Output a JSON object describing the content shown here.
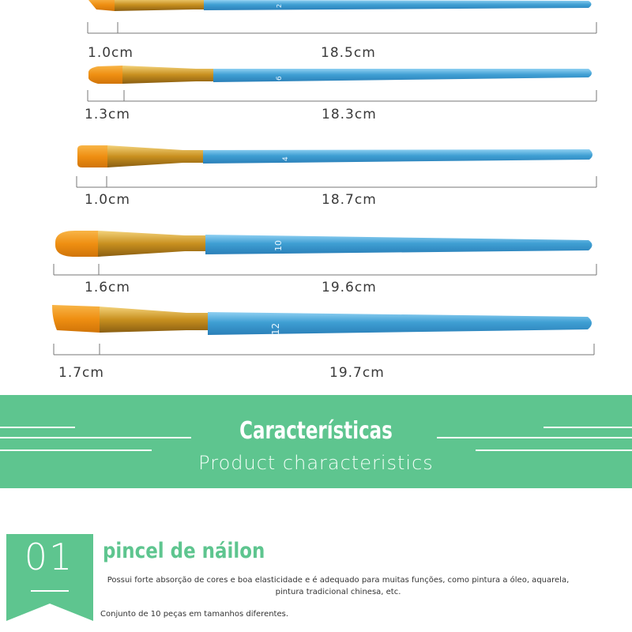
{
  "colors": {
    "accent": "#5ec58f",
    "handle": "#3f9fd3",
    "ferrule": "#d4a232",
    "bristle": "#f29a1a"
  },
  "brushes": [
    {
      "number": "2",
      "tip_label": "1.0cm",
      "length_label": "18.5cm"
    },
    {
      "number": "6",
      "tip_label": "1.3cm",
      "length_label": "18.3cm"
    },
    {
      "number": "4",
      "tip_label": "1.0cm",
      "length_label": "18.7cm"
    },
    {
      "number": "10",
      "tip_label": "1.6cm",
      "length_label": "19.6cm"
    },
    {
      "number": "12",
      "tip_label": "1.7cm",
      "length_label": "19.7cm"
    }
  ],
  "banner": {
    "title": "Características",
    "subtitle": "Product characteristics"
  },
  "feature": {
    "number": "01",
    "title": "pincel de náilon",
    "description": "Possui forte absorção de cores e boa elasticidade e é adequado para muitas funções, como pintura a óleo, aquarela, pintura tradicional chinesa, etc.",
    "note": "Conjunto de 10 peças em tamanhos diferentes."
  }
}
